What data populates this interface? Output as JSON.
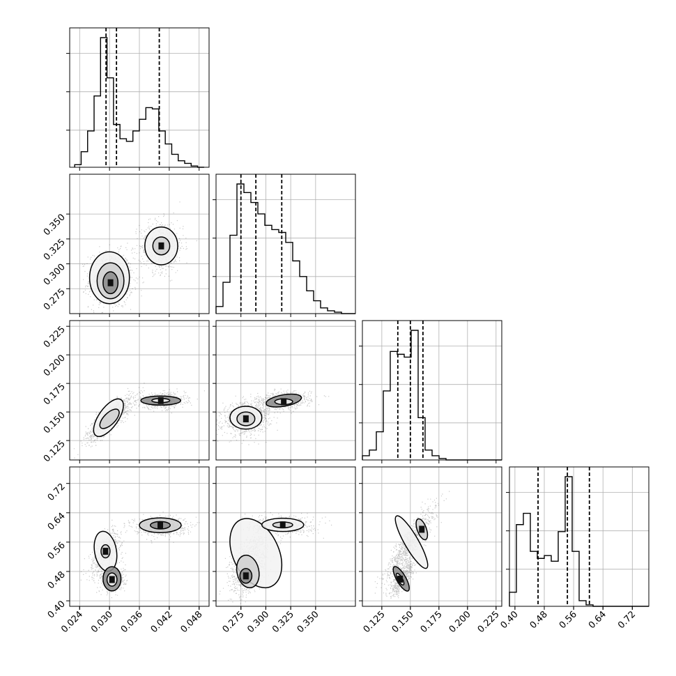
{
  "chart_data": {
    "type": "corner",
    "grid": true,
    "parameters": [
      {
        "index": 0,
        "range": [
          0.022,
          0.05
        ],
        "ticks": [
          0.024,
          0.03,
          0.036,
          0.042,
          0.048
        ],
        "tick_labels": [
          "0.024",
          "0.030",
          "0.036",
          "0.042",
          "0.048"
        ],
        "quantiles": [
          0.0293,
          0.0314,
          0.04
        ]
      },
      {
        "index": 1,
        "range": [
          0.25,
          0.39
        ],
        "ticks": [
          0.275,
          0.3,
          0.325,
          0.35
        ],
        "tick_labels": [
          "0.275",
          "0.300",
          "0.325",
          "0.350"
        ],
        "quantiles": [
          0.275,
          0.29,
          0.316
        ]
      },
      {
        "index": 2,
        "range": [
          0.108,
          0.23
        ],
        "ticks": [
          0.125,
          0.15,
          0.175,
          0.2,
          0.225
        ],
        "tick_labels": [
          "0.125",
          "0.150",
          "0.175",
          "0.200",
          "0.225"
        ],
        "quantiles": [
          0.139,
          0.15,
          0.161
        ]
      },
      {
        "index": 3,
        "range": [
          0.385,
          0.765
        ],
        "ticks": [
          0.4,
          0.48,
          0.56,
          0.64,
          0.72
        ],
        "tick_labels": [
          "0.40",
          "0.48",
          "0.56",
          "0.64",
          "0.72"
        ],
        "quantiles": [
          0.463,
          0.543,
          0.603
        ]
      }
    ],
    "histograms": [
      {
        "param": 0,
        "bin_start": 0.023,
        "bin_width": 0.0013,
        "counts": [
          0.02,
          0.12,
          0.28,
          0.55,
          1.0,
          0.69,
          0.33,
          0.22,
          0.2,
          0.28,
          0.37,
          0.46,
          0.45,
          0.28,
          0.18,
          0.1,
          0.05,
          0.03,
          0.01,
          0.0
        ]
      },
      {
        "param": 1,
        "bin_start": 0.25,
        "bin_width": 0.007,
        "counts": [
          0.05,
          0.22,
          0.55,
          0.91,
          0.85,
          0.78,
          0.7,
          0.62,
          0.59,
          0.57,
          0.5,
          0.37,
          0.26,
          0.16,
          0.09,
          0.04,
          0.02,
          0.01,
          0.0,
          0.0
        ]
      },
      {
        "param": 2,
        "bin_start": 0.108,
        "bin_width": 0.0061,
        "counts": [
          0.03,
          0.07,
          0.2,
          0.49,
          0.77,
          0.75,
          0.73,
          0.92,
          0.3,
          0.07,
          0.03,
          0.01,
          0.0,
          0.0,
          0.0,
          0.0,
          0.0,
          0.0,
          0.0,
          0.0
        ]
      },
      {
        "param": 3,
        "bin_start": 0.385,
        "bin_width": 0.019,
        "counts": [
          0.1,
          0.58,
          0.66,
          0.39,
          0.34,
          0.36,
          0.32,
          0.53,
          0.92,
          0.39,
          0.04,
          0.01,
          0.0,
          0.0,
          0.0,
          0.0,
          0.0,
          0.0,
          0.0,
          0.0
        ]
      }
    ],
    "scatter_blobs": [
      {
        "x": 0,
        "y": 1,
        "modes": [
          {
            "cx": 0.0302,
            "cy": 0.284,
            "sx": 0.0022,
            "sy": 0.014,
            "w": 0.6,
            "rho": 0.0
          },
          {
            "cx": 0.0404,
            "cy": 0.318,
            "sx": 0.0022,
            "sy": 0.013,
            "w": 0.4,
            "rho": 0.0
          }
        ]
      },
      {
        "x": 0,
        "y": 2,
        "modes": [
          {
            "cx": 0.03,
            "cy": 0.145,
            "sx": 0.0024,
            "sy": 0.01,
            "w": 0.6,
            "rho": 0.85
          },
          {
            "cx": 0.0403,
            "cy": 0.16,
            "sx": 0.0024,
            "sy": 0.0035,
            "w": 0.4,
            "rho": 0.1
          }
        ]
      },
      {
        "x": 1,
        "y": 2,
        "modes": [
          {
            "cx": 0.28,
            "cy": 0.145,
            "sx": 0.012,
            "sy": 0.007,
            "w": 0.6,
            "rho": 0.2
          },
          {
            "cx": 0.317,
            "cy": 0.16,
            "sx": 0.014,
            "sy": 0.004,
            "w": 0.4,
            "rho": 0.2
          }
        ]
      },
      {
        "x": 0,
        "y": 3,
        "modes": [
          {
            "cx": 0.0292,
            "cy": 0.535,
            "sx": 0.0017,
            "sy": 0.03,
            "w": 0.3,
            "rho": 0.7
          },
          {
            "cx": 0.0305,
            "cy": 0.46,
            "sx": 0.0013,
            "sy": 0.018,
            "w": 0.3,
            "rho": 0.0
          },
          {
            "cx": 0.0402,
            "cy": 0.605,
            "sx": 0.0026,
            "sy": 0.013,
            "w": 0.4,
            "rho": 0.0
          }
        ]
      },
      {
        "x": 1,
        "y": 3,
        "modes": [
          {
            "cx": 0.283,
            "cy": 0.5,
            "sx": 0.01,
            "sy": 0.045,
            "w": 0.6,
            "rho": 0.5
          },
          {
            "cx": 0.317,
            "cy": 0.606,
            "sx": 0.015,
            "sy": 0.012,
            "w": 0.4,
            "rho": 0.0
          }
        ]
      },
      {
        "x": 2,
        "y": 3,
        "modes": [
          {
            "cx": 0.15,
            "cy": 0.56,
            "sx": 0.011,
            "sy": 0.05,
            "w": 0.6,
            "rho": 0.9
          },
          {
            "cx": 0.142,
            "cy": 0.46,
            "sx": 0.005,
            "sy": 0.022,
            "w": 0.4,
            "rho": 0.75
          }
        ]
      }
    ],
    "contour_ellipses": [
      {
        "x": 0,
        "y": 1,
        "rings": [
          {
            "cx": 0.03,
            "cy": 0.286,
            "rx": 0.004,
            "ry": 0.026,
            "rot": 0
          },
          {
            "cx": 0.0302,
            "cy": 0.283,
            "rx": 0.0027,
            "ry": 0.018,
            "rot": 0
          },
          {
            "cx": 0.0302,
            "cy": 0.281,
            "rx": 0.0015,
            "ry": 0.011,
            "rot": 0
          },
          {
            "cx": 0.0404,
            "cy": 0.318,
            "rx": 0.0033,
            "ry": 0.019,
            "rot": 0
          },
          {
            "cx": 0.0404,
            "cy": 0.318,
            "rx": 0.0017,
            "ry": 0.009,
            "rot": 0
          }
        ]
      },
      {
        "x": 0,
        "y": 2,
        "rings": [
          {
            "cx": 0.0298,
            "cy": 0.145,
            "rx": 0.0044,
            "ry": 0.0085,
            "rot": -55
          },
          {
            "cx": 0.03,
            "cy": 0.144,
            "rx": 0.0025,
            "ry": 0.005,
            "rot": -45
          },
          {
            "cx": 0.0403,
            "cy": 0.16,
            "rx": 0.004,
            "ry": 0.004,
            "rot": 0
          },
          {
            "cx": 0.0403,
            "cy": 0.16,
            "rx": 0.0018,
            "ry": 0.0018,
            "rot": 0
          }
        ]
      },
      {
        "x": 1,
        "y": 2,
        "rings": [
          {
            "cx": 0.28,
            "cy": 0.145,
            "rx": 0.016,
            "ry": 0.01,
            "rot": 0
          },
          {
            "cx": 0.28,
            "cy": 0.144,
            "rx": 0.009,
            "ry": 0.006,
            "rot": 0
          },
          {
            "cx": 0.318,
            "cy": 0.16,
            "rx": 0.018,
            "ry": 0.005,
            "rot": -10
          },
          {
            "cx": 0.318,
            "cy": 0.159,
            "rx": 0.009,
            "ry": 0.0025,
            "rot": 0
          }
        ]
      },
      {
        "x": 0,
        "y": 3,
        "rings": [
          {
            "cx": 0.0292,
            "cy": 0.535,
            "rx": 0.0022,
            "ry": 0.055,
            "rot": -10
          },
          {
            "cx": 0.0292,
            "cy": 0.535,
            "rx": 0.0009,
            "ry": 0.018,
            "rot": 0
          },
          {
            "cx": 0.0305,
            "cy": 0.46,
            "rx": 0.0018,
            "ry": 0.033,
            "rot": 0
          },
          {
            "cx": 0.0305,
            "cy": 0.458,
            "rx": 0.001,
            "ry": 0.018,
            "rot": 0
          },
          {
            "cx": 0.0402,
            "cy": 0.606,
            "rx": 0.0042,
            "ry": 0.02,
            "rot": 0
          },
          {
            "cx": 0.0402,
            "cy": 0.606,
            "rx": 0.002,
            "ry": 0.01,
            "rot": 0
          }
        ]
      },
      {
        "x": 1,
        "y": 3,
        "rings": [
          {
            "cx": 0.29,
            "cy": 0.53,
            "rx": 0.023,
            "ry": 0.1,
            "rot": -25
          },
          {
            "cx": 0.282,
            "cy": 0.48,
            "rx": 0.011,
            "ry": 0.045,
            "rot": -12
          },
          {
            "cx": 0.28,
            "cy": 0.468,
            "rx": 0.006,
            "ry": 0.02,
            "rot": 0
          },
          {
            "cx": 0.317,
            "cy": 0.607,
            "rx": 0.021,
            "ry": 0.018,
            "rot": 0
          },
          {
            "cx": 0.317,
            "cy": 0.607,
            "rx": 0.01,
            "ry": 0.008,
            "rot": 0
          }
        ]
      },
      {
        "x": 2,
        "y": 3,
        "rings": [
          {
            "cx": 0.151,
            "cy": 0.56,
            "rx": 0.006,
            "ry": 0.082,
            "rot": -30
          },
          {
            "cx": 0.16,
            "cy": 0.595,
            "rx": 0.004,
            "ry": 0.03,
            "rot": -20
          },
          {
            "cx": 0.142,
            "cy": 0.46,
            "rx": 0.004,
            "ry": 0.038,
            "rot": -30
          },
          {
            "cx": 0.141,
            "cy": 0.459,
            "rx": 0.002,
            "ry": 0.018,
            "rot": -30
          }
        ]
      }
    ]
  }
}
